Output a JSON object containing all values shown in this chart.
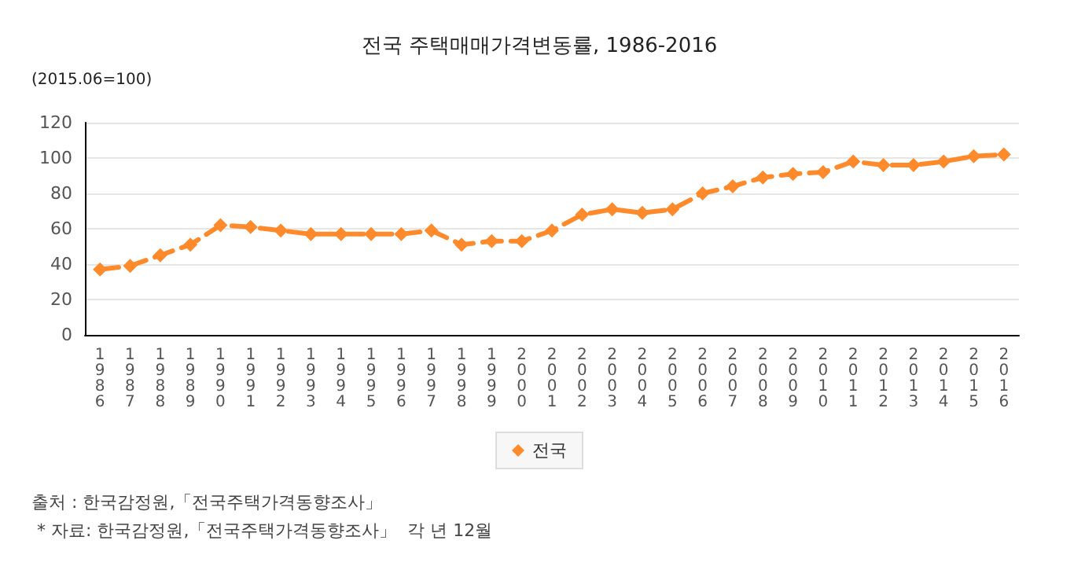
{
  "chart_data": {
    "type": "line",
    "title": "전국 주택매매가격변동률, 1986-2016",
    "ylabel": "(2015.06=100)",
    "categories": [
      "1986",
      "1987",
      "1988",
      "1989",
      "1990",
      "1991",
      "1992",
      "1993",
      "1994",
      "1995",
      "1996",
      "1997",
      "1998",
      "1999",
      "2000",
      "2001",
      "2002",
      "2003",
      "2004",
      "2005",
      "2006",
      "2007",
      "2008",
      "2009",
      "2010",
      "2011",
      "2012",
      "2013",
      "2014",
      "2015",
      "2016"
    ],
    "series": [
      {
        "name": "전국",
        "color": "#ff8a2b",
        "values": [
          37,
          39,
          45,
          51,
          62,
          61,
          59,
          57,
          57,
          57,
          57,
          59,
          51,
          53,
          53,
          59,
          68,
          71,
          69,
          71,
          80,
          84,
          89,
          91,
          92,
          98,
          96,
          96,
          98,
          101,
          102
        ]
      }
    ],
    "ylim": [
      0,
      120
    ],
    "yticks": [
      0,
      20,
      40,
      60,
      80,
      100,
      120
    ],
    "grid": "y",
    "legend": "bottom",
    "marker": "diamond",
    "line_style": "dashed",
    "annotations": [
      "출처 : 한국감정원,「전국주택가격동향조사」",
      " * 자료: 한국감정원,「전국주택가격동향조사」  각 년 12월"
    ]
  }
}
